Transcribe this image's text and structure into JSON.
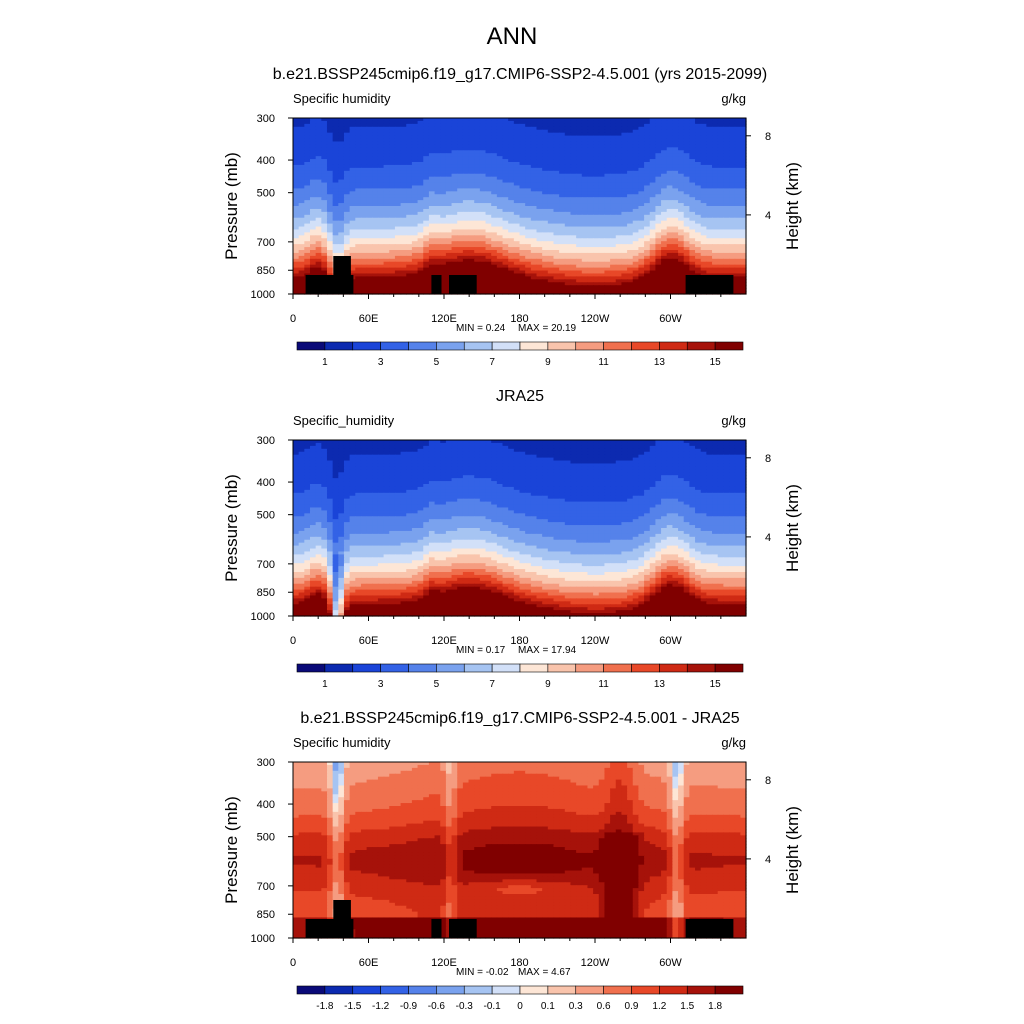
{
  "figure_title": "ANN",
  "chart_data": [
    {
      "type": "heatmap",
      "title": "b.e21.BSSP245cmip6.f19_g17.CMIP6-SSP2-4.5.001 (yrs 2015-2099)",
      "variable": "Specific humidity",
      "units": "g/kg",
      "ylabel": "Pressure (mb)",
      "ylabel_right": "Height (km)",
      "x_ticks": [
        "0",
        "60E",
        "120E",
        "180",
        "120W",
        "60W"
      ],
      "y_ticks": [
        "300",
        "400",
        "500",
        "700",
        "850",
        "1000"
      ],
      "right_ticks": [
        "8",
        "4"
      ],
      "ylim": [
        1000,
        300
      ],
      "min_label": "MIN =   0.24",
      "max_label": "MAX =  20.19",
      "colorbar_labels": [
        "1",
        "3",
        "5",
        "7",
        "9",
        "11",
        "13",
        "15"
      ],
      "levels": [
        0.5,
        1,
        2,
        3,
        4,
        5,
        6,
        7,
        8,
        9,
        10,
        11,
        12,
        13,
        14,
        15
      ],
      "surface_mask": true
    },
    {
      "type": "heatmap",
      "title": "JRA25",
      "variable": "Specific_humidity",
      "units": "g/kg",
      "ylabel": "Pressure (mb)",
      "ylabel_right": "Height (km)",
      "x_ticks": [
        "0",
        "60E",
        "120E",
        "180",
        "120W",
        "60W"
      ],
      "y_ticks": [
        "300",
        "400",
        "500",
        "700",
        "850",
        "1000"
      ],
      "right_ticks": [
        "8",
        "4"
      ],
      "ylim": [
        1000,
        300
      ],
      "min_label": "MIN =   0.17",
      "max_label": "MAX =  17.94",
      "colorbar_labels": [
        "1",
        "3",
        "5",
        "7",
        "9",
        "11",
        "13",
        "15"
      ],
      "levels": [
        0.5,
        1,
        2,
        3,
        4,
        5,
        6,
        7,
        8,
        9,
        10,
        11,
        12,
        13,
        14,
        15
      ],
      "surface_mask": false
    },
    {
      "type": "heatmap",
      "title": "b.e21.BSSP245cmip6.f19_g17.CMIP6-SSP2-4.5.001 - JRA25",
      "variable": "Specific humidity",
      "units": "g/kg",
      "ylabel": "Pressure (mb)",
      "ylabel_right": "Height (km)",
      "x_ticks": [
        "0",
        "60E",
        "120E",
        "180",
        "120W",
        "60W"
      ],
      "y_ticks": [
        "300",
        "400",
        "500",
        "700",
        "850",
        "1000"
      ],
      "right_ticks": [
        "8",
        "4"
      ],
      "ylim": [
        1000,
        300
      ],
      "min_label": "MIN =  -0.02",
      "max_label": "MAX =   4.67",
      "colorbar_labels": [
        "-1.8",
        "-1.5",
        "-1.2",
        "-0.9",
        "-0.6",
        "-0.3",
        "-0.1",
        "0",
        "0.1",
        "0.3",
        "0.6",
        "0.9",
        "1.2",
        "1.5",
        "1.8"
      ],
      "surface_mask": true
    }
  ],
  "palette": [
    "#0a0a78",
    "#0c2ab0",
    "#1a44d8",
    "#3362e6",
    "#5582ea",
    "#7aa2ee",
    "#a6c4f2",
    "#d2e0f8",
    "#fde6d6",
    "#f9c4ac",
    "#f59c80",
    "#f0704e",
    "#e84828",
    "#cf2a14",
    "#a6120a",
    "#800000"
  ]
}
